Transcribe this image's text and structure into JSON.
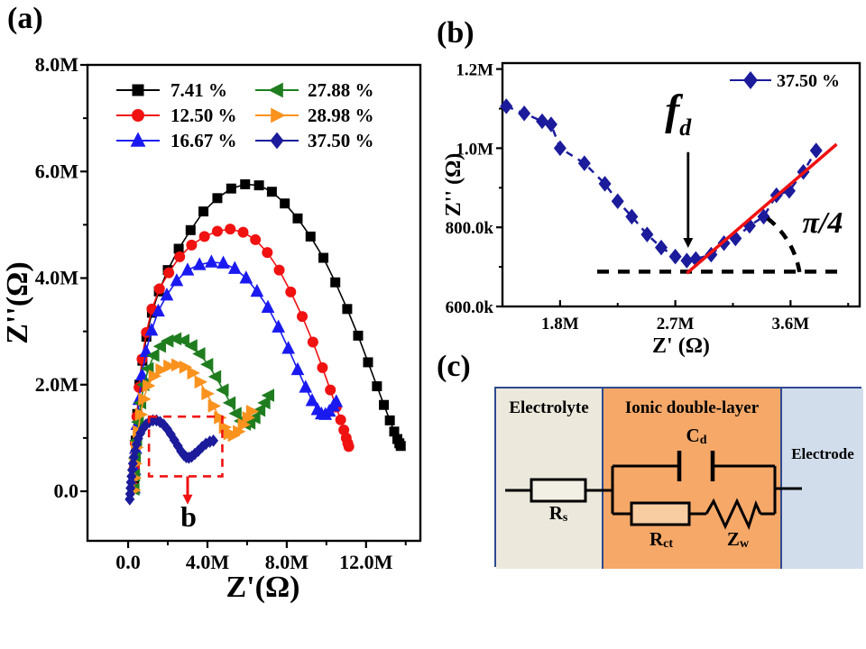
{
  "panel_labels": {
    "a": "(a)",
    "b": "(b)",
    "c": "(c)"
  },
  "colors": {
    "black": "#000000",
    "red": "#f01111",
    "blue": "#1a1af0",
    "green": "#1f7d1f",
    "orange": "#fa921e",
    "navy": "#1b1b9b",
    "annotation_red": "#f01111",
    "circuit_border": "#2e4a8f",
    "electrolyte_bg": "#ece9dc",
    "ionic_bg": "#f5a868",
    "electrode_bg": "#d2ddec"
  },
  "chart_data": [
    {
      "id": "a",
      "type": "scatter",
      "xlabel": "Z'(Ω)",
      "ylabel": "Z''(Ω)",
      "x_unit": "MΩ",
      "y_unit": "MΩ",
      "xlim": [
        -2.05,
        14.74
      ],
      "ylim": [
        -0.93,
        8.0
      ],
      "grid": false,
      "legend_position": "top-center-two-columns",
      "xticks": {
        "major": {
          "values": [
            0,
            4,
            8,
            12
          ],
          "labels": [
            "0.0",
            "4.0M",
            "8.0M",
            "12.0M"
          ]
        },
        "minor": [
          2,
          6,
          10,
          14
        ]
      },
      "yticks": {
        "major": {
          "values": [
            0,
            2,
            4,
            6,
            8
          ],
          "labels": [
            "0.0",
            "2.0M",
            "4.0M",
            "6.0M",
            "8.0M"
          ]
        },
        "minor": [
          1,
          3,
          5,
          7
        ]
      },
      "series": [
        {
          "name": "7.41 %",
          "color": "#000000",
          "marker": "square",
          "points": [
            [
              0.3,
              0.1
            ],
            [
              0.33,
              0.5
            ],
            [
              0.38,
              0.95
            ],
            [
              0.46,
              1.45
            ],
            [
              0.57,
              2.0
            ],
            [
              0.72,
              2.45
            ],
            [
              0.92,
              2.9
            ],
            [
              1.2,
              3.35
            ],
            [
              1.55,
              3.75
            ],
            [
              2.0,
              4.15
            ],
            [
              2.55,
              4.55
            ],
            [
              3.15,
              4.9
            ],
            [
              3.8,
              5.25
            ],
            [
              4.5,
              5.5
            ],
            [
              5.2,
              5.68
            ],
            [
              5.9,
              5.76
            ],
            [
              6.6,
              5.74
            ],
            [
              7.25,
              5.62
            ],
            [
              7.9,
              5.4
            ],
            [
              8.55,
              5.12
            ],
            [
              9.2,
              4.78
            ],
            [
              9.85,
              4.38
            ],
            [
              10.45,
              3.92
            ],
            [
              11.05,
              3.42
            ],
            [
              11.6,
              2.92
            ],
            [
              12.1,
              2.42
            ],
            [
              12.55,
              1.97
            ],
            [
              12.9,
              1.62
            ],
            [
              13.2,
              1.33
            ],
            [
              13.42,
              1.12
            ],
            [
              13.58,
              0.98
            ],
            [
              13.68,
              0.9
            ],
            [
              13.75,
              0.85
            ]
          ]
        },
        {
          "name": "12.50 %",
          "color": "#f01111",
          "marker": "circle",
          "points": [
            [
              0.28,
              0.08
            ],
            [
              0.31,
              0.45
            ],
            [
              0.36,
              0.9
            ],
            [
              0.44,
              1.4
            ],
            [
              0.55,
              1.95
            ],
            [
              0.7,
              2.48
            ],
            [
              0.92,
              2.98
            ],
            [
              1.2,
              3.42
            ],
            [
              1.58,
              3.8
            ],
            [
              2.05,
              4.1
            ],
            [
              2.6,
              4.4
            ],
            [
              3.2,
              4.62
            ],
            [
              3.85,
              4.78
            ],
            [
              4.5,
              4.88
            ],
            [
              5.15,
              4.92
            ],
            [
              5.8,
              4.86
            ],
            [
              6.42,
              4.72
            ],
            [
              7.02,
              4.48
            ],
            [
              7.62,
              4.15
            ],
            [
              8.2,
              3.74
            ],
            [
              8.78,
              3.28
            ],
            [
              9.32,
              2.8
            ],
            [
              9.8,
              2.32
            ],
            [
              10.2,
              1.9
            ],
            [
              10.5,
              1.58
            ],
            [
              10.72,
              1.34
            ],
            [
              10.88,
              1.15
            ],
            [
              11.0,
              1.0
            ],
            [
              11.08,
              0.9
            ],
            [
              11.13,
              0.84
            ]
          ]
        },
        {
          "name": "16.67 %",
          "color": "#1a1af0",
          "marker": "triangle-up",
          "points": [
            [
              0.3,
              0.06
            ],
            [
              0.33,
              0.4
            ],
            [
              0.38,
              0.8
            ],
            [
              0.45,
              1.25
            ],
            [
              0.55,
              1.72
            ],
            [
              0.7,
              2.18
            ],
            [
              0.9,
              2.62
            ],
            [
              1.18,
              3.02
            ],
            [
              1.52,
              3.38
            ],
            [
              1.95,
              3.68
            ],
            [
              2.45,
              3.95
            ],
            [
              3.0,
              4.15
            ],
            [
              3.6,
              4.25
            ],
            [
              4.2,
              4.3
            ],
            [
              4.8,
              4.28
            ],
            [
              5.38,
              4.18
            ],
            [
              5.95,
              4.0
            ],
            [
              6.5,
              3.75
            ],
            [
              7.05,
              3.45
            ],
            [
              7.58,
              3.08
            ],
            [
              8.08,
              2.68
            ],
            [
              8.55,
              2.28
            ],
            [
              8.95,
              1.95
            ],
            [
              9.28,
              1.7
            ],
            [
              9.55,
              1.53
            ],
            [
              9.75,
              1.45
            ],
            [
              9.95,
              1.44
            ],
            [
              10.15,
              1.5
            ],
            [
              10.35,
              1.6
            ],
            [
              10.5,
              1.68
            ]
          ]
        },
        {
          "name": "27.88 %",
          "color": "#1f7d1f",
          "marker": "triangle-left",
          "points": [
            [
              0.3,
              0.04
            ],
            [
              0.33,
              0.3
            ],
            [
              0.37,
              0.62
            ],
            [
              0.43,
              0.95
            ],
            [
              0.52,
              1.3
            ],
            [
              0.64,
              1.66
            ],
            [
              0.8,
              2.0
            ],
            [
              1.02,
              2.3
            ],
            [
              1.3,
              2.55
            ],
            [
              1.64,
              2.72
            ],
            [
              2.02,
              2.82
            ],
            [
              2.42,
              2.86
            ],
            [
              2.82,
              2.83
            ],
            [
              3.22,
              2.73
            ],
            [
              3.62,
              2.58
            ],
            [
              4.02,
              2.38
            ],
            [
              4.42,
              2.15
            ],
            [
              4.8,
              1.9
            ],
            [
              5.15,
              1.66
            ],
            [
              5.45,
              1.46
            ],
            [
              5.7,
              1.32
            ],
            [
              5.92,
              1.26
            ],
            [
              6.15,
              1.28
            ],
            [
              6.4,
              1.38
            ],
            [
              6.65,
              1.52
            ],
            [
              6.9,
              1.66
            ],
            [
              7.1,
              1.8
            ]
          ]
        },
        {
          "name": "28.98 %",
          "color": "#fa921e",
          "marker": "triangle-right",
          "points": [
            [
              0.28,
              0.02
            ],
            [
              0.31,
              0.25
            ],
            [
              0.35,
              0.52
            ],
            [
              0.41,
              0.82
            ],
            [
              0.5,
              1.12
            ],
            [
              0.62,
              1.44
            ],
            [
              0.78,
              1.73
            ],
            [
              1.0,
              1.98
            ],
            [
              1.3,
              2.16
            ],
            [
              1.65,
              2.28
            ],
            [
              2.05,
              2.35
            ],
            [
              2.45,
              2.37
            ],
            [
              2.85,
              2.33
            ],
            [
              3.25,
              2.22
            ],
            [
              3.62,
              2.05
            ],
            [
              3.97,
              1.83
            ],
            [
              4.3,
              1.6
            ],
            [
              4.6,
              1.38
            ],
            [
              4.85,
              1.2
            ],
            [
              5.08,
              1.08
            ],
            [
              5.3,
              1.05
            ],
            [
              5.55,
              1.12
            ],
            [
              5.8,
              1.25
            ],
            [
              6.03,
              1.38
            ],
            [
              6.22,
              1.5
            ]
          ]
        },
        {
          "name": "37.50 %",
          "color": "#1b1b9b",
          "marker": "diamond",
          "points": [
            [
              0.08,
              -0.15
            ],
            [
              0.1,
              -0.05
            ],
            [
              0.12,
              0.06
            ],
            [
              0.14,
              0.17
            ],
            [
              0.17,
              0.28
            ],
            [
              0.2,
              0.4
            ],
            [
              0.24,
              0.52
            ],
            [
              0.29,
              0.64
            ],
            [
              0.35,
              0.76
            ],
            [
              0.42,
              0.88
            ],
            [
              0.51,
              0.99
            ],
            [
              0.62,
              1.09
            ],
            [
              0.75,
              1.18
            ],
            [
              0.9,
              1.25
            ],
            [
              1.07,
              1.3
            ],
            [
              1.25,
              1.33
            ],
            [
              1.43,
              1.33
            ],
            [
              1.61,
              1.3
            ],
            [
              1.79,
              1.25
            ],
            [
              1.97,
              1.17
            ],
            [
              2.15,
              1.07
            ],
            [
              2.33,
              0.96
            ],
            [
              2.51,
              0.85
            ],
            [
              2.67,
              0.75
            ],
            [
              2.81,
              0.68
            ],
            [
              2.93,
              0.64
            ],
            [
              3.06,
              0.63
            ],
            [
              3.2,
              0.65
            ],
            [
              3.36,
              0.7
            ],
            [
              3.54,
              0.76
            ],
            [
              3.73,
              0.83
            ],
            [
              3.92,
              0.89
            ],
            [
              4.12,
              0.93
            ],
            [
              4.3,
              0.95
            ]
          ]
        }
      ],
      "annotations": [
        {
          "type": "rect",
          "x1": 1.05,
          "x2": 4.75,
          "y1": 0.28,
          "y2": 1.4,
          "color": "#f01111",
          "dash": true,
          "width": 2.6
        },
        {
          "type": "arrow",
          "x": 3.0,
          "y1": 0.28,
          "y2": -0.25,
          "color": "#f01111",
          "width": 3
        },
        {
          "type": "text",
          "x": 3.05,
          "y": -0.66,
          "text": "b",
          "size": 32,
          "color": "#000000"
        }
      ]
    },
    {
      "id": "b",
      "type": "scatter",
      "xlabel": "Z' (Ω)",
      "ylabel": "Z'' (Ω)",
      "x_unit": "MΩ",
      "y_unit": "kΩ",
      "xlim": [
        1.35,
        4.14
      ],
      "ylim": [
        600,
        1215
      ],
      "grid": false,
      "legend_position": "top-right",
      "xticks": {
        "major": {
          "values": [
            1.8,
            2.7,
            3.6
          ],
          "labels": [
            "1.8M",
            "2.7M",
            "3.6M"
          ]
        },
        "minor": [
          2.25,
          3.15,
          4.05
        ]
      },
      "yticks": {
        "major": {
          "values": [
            600,
            800,
            1000,
            1200
          ],
          "labels": [
            "600.0k",
            "800.0k",
            "1.0M",
            "1.2M"
          ]
        },
        "minor": [
          700,
          900,
          1100
        ]
      },
      "series": [
        {
          "name": "37.50 %",
          "color": "#1b1b9b",
          "marker": "diamond",
          "line_dash": "8 7",
          "points": [
            [
              1.38,
              1106
            ],
            [
              1.52,
              1088
            ],
            [
              1.66,
              1068
            ],
            [
              1.73,
              1060
            ],
            [
              1.8,
              1000
            ],
            [
              1.99,
              962
            ],
            [
              2.15,
              910
            ],
            [
              2.25,
              866
            ],
            [
              2.36,
              827
            ],
            [
              2.48,
              782
            ],
            [
              2.59,
              749
            ],
            [
              2.7,
              726
            ],
            [
              2.79,
              716
            ],
            [
              2.86,
              720
            ],
            [
              2.98,
              731
            ],
            [
              3.08,
              760
            ],
            [
              3.17,
              772
            ],
            [
              3.28,
              804
            ],
            [
              3.39,
              827
            ],
            [
              3.49,
              881
            ],
            [
              3.59,
              892
            ],
            [
              3.7,
              940
            ],
            [
              3.8,
              994
            ]
          ]
        }
      ],
      "annotations": [
        {
          "type": "hline",
          "y": 688,
          "x1": 2.09,
          "x2": 4.01,
          "color": "#000000",
          "dash": true,
          "width": 4.5
        },
        {
          "type": "line",
          "x1": 2.79,
          "y1": 684,
          "x2": 3.96,
          "y2": 1010,
          "color": "#f01111",
          "width": 3.5
        },
        {
          "type": "arc",
          "x1": 3.67,
          "y1": 687,
          "x2": 3.38,
          "y2": 832,
          "r": 95,
          "color": "#000000",
          "dash": true,
          "width": 4.5
        },
        {
          "type": "arrow",
          "x": 2.8,
          "y1": 990,
          "y2": 748,
          "color": "#000000",
          "width": 2.8
        },
        {
          "type": "ftext",
          "x": 2.62,
          "y": 1060,
          "text": "f",
          "sub": "d"
        },
        {
          "type": "text",
          "x": 3.85,
          "y": 787,
          "text": "π/4",
          "size": 34,
          "italic": true,
          "color": "#000000"
        }
      ]
    }
  ],
  "circuit_diagram": {
    "regions": [
      {
        "name": "Electrolyte"
      },
      {
        "name": "Ionic double-layer"
      },
      {
        "name": "Electrode"
      }
    ],
    "components": [
      {
        "id": "Rs",
        "main": "R",
        "sub": "s",
        "type": "resistor"
      },
      {
        "id": "Cd",
        "main": "C",
        "sub": "d",
        "type": "capacitor"
      },
      {
        "id": "Rct",
        "main": "R",
        "sub": "ct",
        "type": "resistor"
      },
      {
        "id": "Zw",
        "main": "Z",
        "sub": "w",
        "type": "warburg"
      }
    ]
  }
}
